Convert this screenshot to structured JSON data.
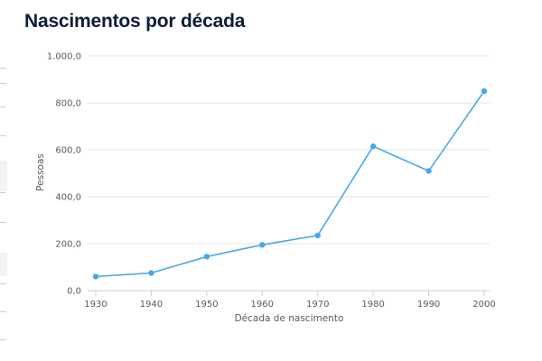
{
  "page": {
    "title": "Nascimentos por década"
  },
  "chart_data": {
    "type": "line",
    "title": "Nascimentos por década",
    "xlabel": "Década de nascimento",
    "ylabel": "Pessoas",
    "categories": [
      "1930",
      "1940",
      "1950",
      "1960",
      "1970",
      "1980",
      "1990",
      "2000"
    ],
    "series": [
      {
        "name": "Pessoas",
        "values": [
          60,
          75,
          145,
          195,
          235,
          615,
          510,
          850
        ]
      }
    ],
    "ylim": [
      0,
      1000
    ],
    "yticks": [
      0,
      200,
      400,
      600,
      800,
      1000
    ],
    "ytick_labels": [
      "0,0",
      "200,0",
      "400,0",
      "600,0",
      "800,0",
      "1.000,0"
    ],
    "grid": true,
    "legend": "none",
    "color": "#4aa8e8"
  }
}
